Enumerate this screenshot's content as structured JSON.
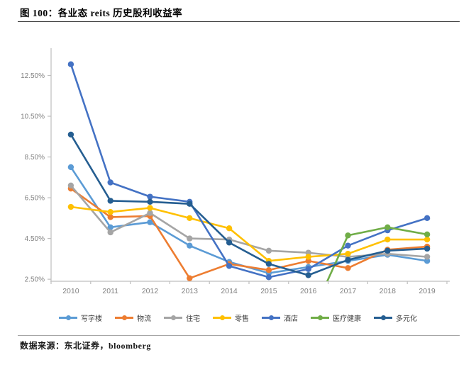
{
  "document": {
    "figure_label": "图 100：各业态 reits 历史股利收益率",
    "source_note": "数据来源：东北证券，bloomberg"
  },
  "chart_data": {
    "type": "line",
    "title": "各业态reits历史股利收益率",
    "x": [
      "2010",
      "2011",
      "2012",
      "2013",
      "2014",
      "2015",
      "2016",
      "2017",
      "2018",
      "2019"
    ],
    "y_ticks": [
      "12.50%",
      "10.50%",
      "8.50%",
      "6.50%",
      "4.50%",
      "2.50%"
    ],
    "y_tick_values": [
      12.5,
      10.5,
      8.5,
      6.5,
      4.5,
      2.5
    ],
    "ylim": [
      2.4,
      13.7
    ],
    "unit": "%",
    "grid": false,
    "legend_position": "bottom",
    "axis_color": "#bfbfbf",
    "tick_label_color": "#808080",
    "series": [
      {
        "id": "office",
        "name": "写字楼",
        "color": "#5B9BD5",
        "values": [
          8.0,
          5.05,
          5.3,
          4.15,
          3.35,
          2.8,
          3.1,
          3.4,
          3.7,
          3.4
        ]
      },
      {
        "id": "logistics",
        "name": "物流",
        "color": "#ED7D31",
        "values": [
          6.95,
          5.55,
          5.6,
          2.55,
          3.25,
          2.95,
          3.4,
          3.05,
          3.95,
          4.1
        ]
      },
      {
        "id": "residential",
        "name": "住宅",
        "color": "#A5A5A5",
        "values": [
          7.1,
          4.8,
          5.75,
          4.5,
          4.45,
          3.9,
          3.8,
          3.6,
          3.75,
          3.6
        ]
      },
      {
        "id": "retail",
        "name": "零售",
        "color": "#FFC000",
        "values": [
          6.05,
          5.8,
          6.0,
          5.5,
          5.0,
          3.4,
          3.6,
          3.75,
          4.45,
          4.45
        ]
      },
      {
        "id": "hotel",
        "name": "酒店",
        "color": "#4472C4",
        "values": [
          13.05,
          7.25,
          6.55,
          6.3,
          3.15,
          2.6,
          3.0,
          4.15,
          4.9,
          5.5
        ]
      },
      {
        "id": "healthcare",
        "name": "医疗健康",
        "color": "#70AD47",
        "values": [
          null,
          null,
          null,
          null,
          null,
          null,
          0.35,
          4.65,
          5.05,
          4.7
        ]
      },
      {
        "id": "diversified",
        "name": "多元化",
        "color": "#255E91",
        "values": [
          9.6,
          6.35,
          6.3,
          6.2,
          4.3,
          3.25,
          2.7,
          3.45,
          3.9,
          4.0
        ]
      }
    ]
  }
}
